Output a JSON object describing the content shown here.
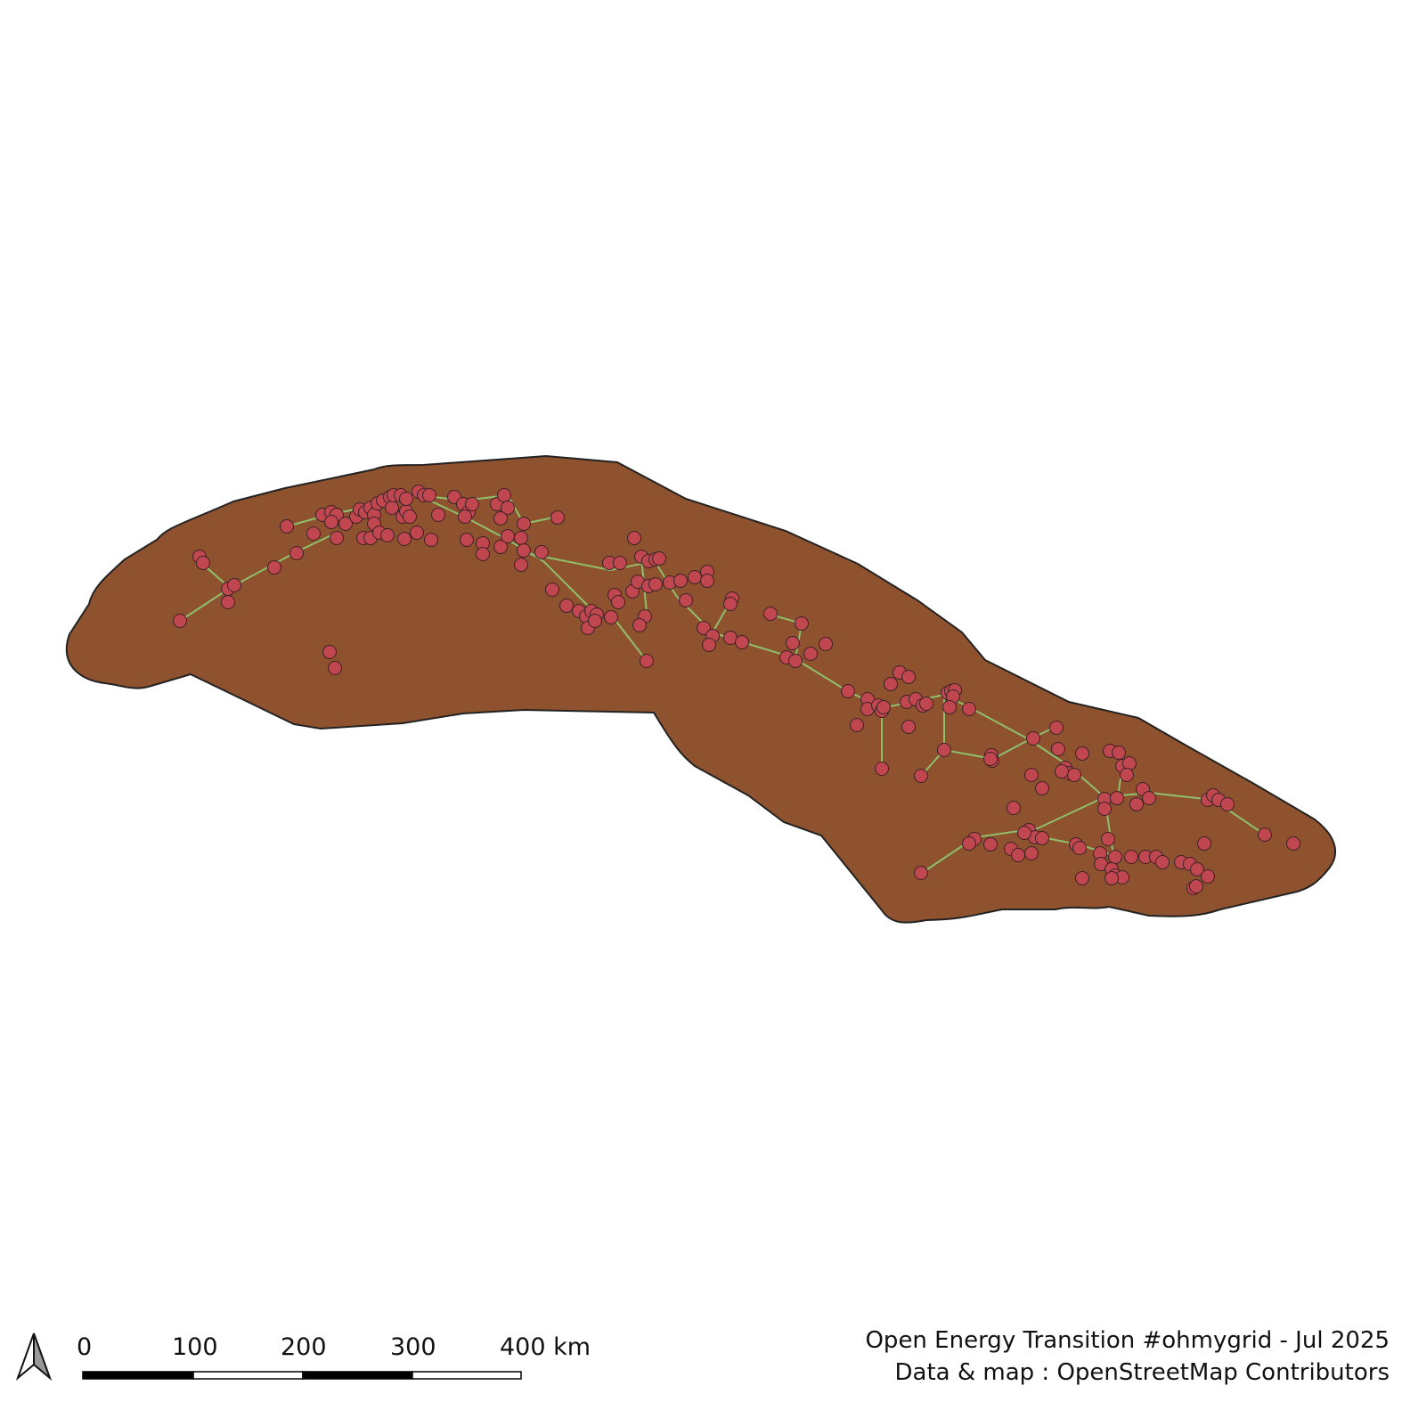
{
  "map": {
    "colors": {
      "land_fill": "#8f522f",
      "land_stroke": "#222222",
      "line_color": "#8fbf6a",
      "substation_fill": "#c0464f",
      "substation_stroke": "#3a2226"
    }
  },
  "scalebar": {
    "labels": [
      "0",
      "100",
      "200",
      "300",
      "400 km"
    ]
  },
  "north_arrow": {
    "icon": "north-arrow-icon"
  },
  "credits": {
    "line1": "Open Energy Transition #ohmygrid - Jul 2025",
    "line2": "Data & map : OpenStreetMap Contributors"
  }
}
